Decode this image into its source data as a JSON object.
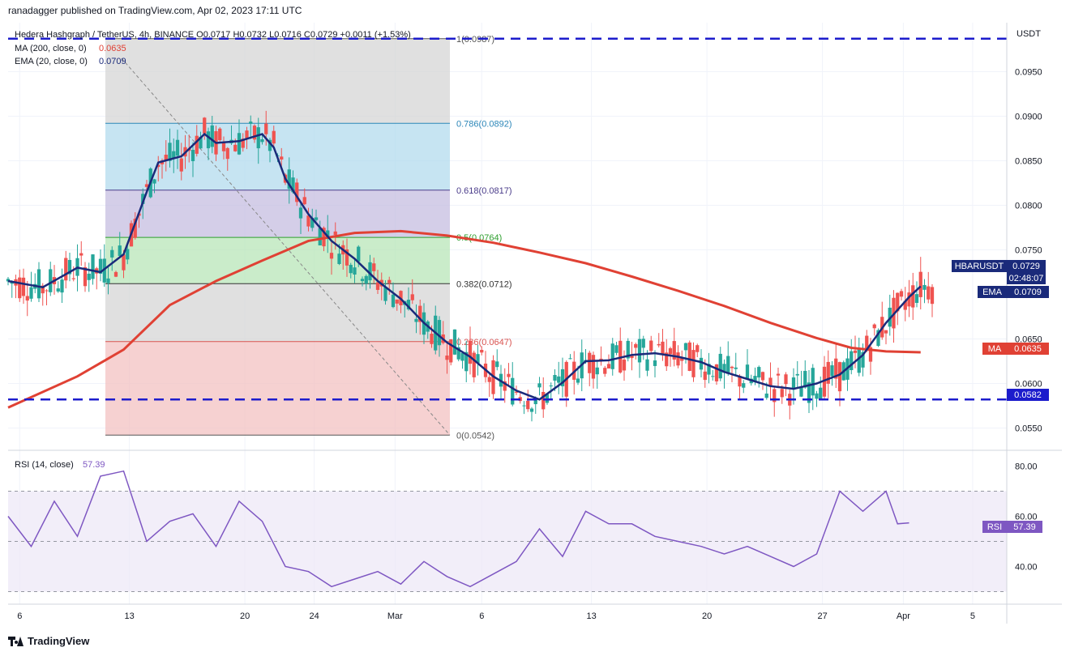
{
  "header": {
    "publisher": "ranadagger published on TradingView.com, Apr 02, 2023 17:11 UTC"
  },
  "legend": {
    "symbol_line": "Hedera Hashgraph / TetherUS, 4h, BINANCE  O0.0717 H0.0732 L0.0716 C0.0729 +0.0011 (+1.53%)",
    "ma_label": "MA (200, close, 0)",
    "ma_value": "0.0635",
    "ema_label": "EMA (20, close, 0)",
    "ema_value": "0.0709",
    "rsi_label": "RSI (14, close)",
    "rsi_value": "57.39"
  },
  "currency": "USDT",
  "price_ticks": [
    "0.0950",
    "0.0900",
    "0.0850",
    "0.0800",
    "0.0750",
    "0.0650",
    "0.0600",
    "0.0550"
  ],
  "rsi_ticks": [
    "80.00",
    "60.00",
    "40.00"
  ],
  "date_ticks": [
    "6",
    "13",
    "20",
    "24",
    "Mar",
    "6",
    "13",
    "20",
    "27",
    "Apr",
    "5"
  ],
  "fib_labels": [
    "1(0.0987)",
    "0.786(0.0892)",
    "0.618(0.0817)",
    "0.5(0.0764)",
    "0.382(0.0712)",
    "0.236(0.0647)",
    "0(0.0542)"
  ],
  "badges": {
    "symbol": "HBARUSDT",
    "symbol_price": "0.0729",
    "countdown": "02:48:07",
    "ema": "EMA",
    "ema_price": "0.0709",
    "ma": "MA",
    "ma_price": "0.0635",
    "support": "0.0582",
    "rsi": "RSI",
    "rsi_price": "57.39"
  },
  "footer": {
    "brand": "TradingView"
  },
  "colors": {
    "ema": "#1a2a7a",
    "ma": "#e04134",
    "up": "#26a69a",
    "down": "#ef5350",
    "rsi": "#7e57c2",
    "dashed": "#1c1ccc"
  },
  "chart_data": {
    "type": "candlestick",
    "title": "Hedera Hashgraph / TetherUS, 4h, BINANCE",
    "ylabel": "USDT",
    "ylim": [
      0.0525,
      0.1005
    ],
    "x": [
      "6",
      "13",
      "20",
      "24",
      "Mar",
      "6",
      "13",
      "20",
      "27",
      "Apr",
      "5"
    ],
    "horizontal_levels": [
      0.0987,
      0.0582
    ],
    "fibonacci": [
      {
        "level": "1",
        "price": 0.0987
      },
      {
        "level": "0.786",
        "price": 0.0892
      },
      {
        "level": "0.618",
        "price": 0.0817
      },
      {
        "level": "0.5",
        "price": 0.0764
      },
      {
        "level": "0.382",
        "price": 0.0712
      },
      {
        "level": "0.236",
        "price": 0.0647
      },
      {
        "level": "0",
        "price": 0.0542
      }
    ],
    "ema20_path": [
      [
        0,
        0.0715
      ],
      [
        3,
        0.0708
      ],
      [
        6,
        0.073
      ],
      [
        8,
        0.0725
      ],
      [
        10,
        0.0745
      ],
      [
        12,
        0.0815
      ],
      [
        13,
        0.0848
      ],
      [
        15,
        0.0855
      ],
      [
        17,
        0.088
      ],
      [
        18,
        0.087
      ],
      [
        20,
        0.0872
      ],
      [
        22,
        0.088
      ],
      [
        23,
        0.0865
      ],
      [
        24,
        0.083
      ],
      [
        26,
        0.079
      ],
      [
        28,
        0.076
      ],
      [
        30,
        0.074
      ],
      [
        32,
        0.0715
      ],
      [
        34,
        0.0695
      ],
      [
        36,
        0.0668
      ],
      [
        38,
        0.0646
      ],
      [
        40,
        0.063
      ],
      [
        42,
        0.0608
      ],
      [
        44,
        0.0592
      ],
      [
        46,
        0.0582
      ],
      [
        48,
        0.0601
      ],
      [
        50,
        0.0625
      ],
      [
        52,
        0.0626
      ],
      [
        54,
        0.0632
      ],
      [
        56,
        0.0634
      ],
      [
        58,
        0.063
      ],
      [
        60,
        0.0624
      ],
      [
        62,
        0.0613
      ],
      [
        64,
        0.0605
      ],
      [
        66,
        0.0597
      ],
      [
        68,
        0.0594
      ],
      [
        70,
        0.06
      ],
      [
        72,
        0.061
      ],
      [
        74,
        0.0632
      ],
      [
        76,
        0.0668
      ],
      [
        78,
        0.0697
      ],
      [
        79,
        0.0709
      ]
    ],
    "ma200_path": [
      [
        0,
        0.0573
      ],
      [
        6,
        0.0608
      ],
      [
        10,
        0.0638
      ],
      [
        14,
        0.0688
      ],
      [
        18,
        0.0715
      ],
      [
        22,
        0.0738
      ],
      [
        26,
        0.076
      ],
      [
        30,
        0.0769
      ],
      [
        34,
        0.0771
      ],
      [
        38,
        0.0766
      ],
      [
        42,
        0.0758
      ],
      [
        46,
        0.0747
      ],
      [
        50,
        0.0735
      ],
      [
        54,
        0.072
      ],
      [
        58,
        0.0704
      ],
      [
        62,
        0.0687
      ],
      [
        66,
        0.0668
      ],
      [
        70,
        0.0651
      ],
      [
        73,
        0.064
      ],
      [
        76,
        0.0636
      ],
      [
        79,
        0.0635
      ]
    ],
    "rsi_path": [
      [
        0,
        60
      ],
      [
        2,
        48
      ],
      [
        4,
        66
      ],
      [
        6,
        52
      ],
      [
        8,
        76
      ],
      [
        10,
        78
      ],
      [
        12,
        50
      ],
      [
        14,
        58
      ],
      [
        16,
        61
      ],
      [
        18,
        48
      ],
      [
        20,
        66
      ],
      [
        22,
        58
      ],
      [
        24,
        40
      ],
      [
        26,
        38
      ],
      [
        28,
        32
      ],
      [
        30,
        35
      ],
      [
        32,
        38
      ],
      [
        34,
        33
      ],
      [
        36,
        42
      ],
      [
        38,
        36
      ],
      [
        40,
        32
      ],
      [
        42,
        37
      ],
      [
        44,
        42
      ],
      [
        46,
        55
      ],
      [
        48,
        44
      ],
      [
        50,
        62
      ],
      [
        52,
        57
      ],
      [
        54,
        57
      ],
      [
        56,
        52
      ],
      [
        58,
        50
      ],
      [
        60,
        48
      ],
      [
        62,
        45
      ],
      [
        64,
        48
      ],
      [
        66,
        44
      ],
      [
        68,
        40
      ],
      [
        70,
        45
      ],
      [
        72,
        70
      ],
      [
        74,
        62
      ],
      [
        76,
        70
      ],
      [
        77,
        57
      ],
      [
        78,
        57.39
      ]
    ],
    "rsi_ylim": [
      25,
      85
    ],
    "rsi_bands": [
      70,
      30
    ]
  }
}
